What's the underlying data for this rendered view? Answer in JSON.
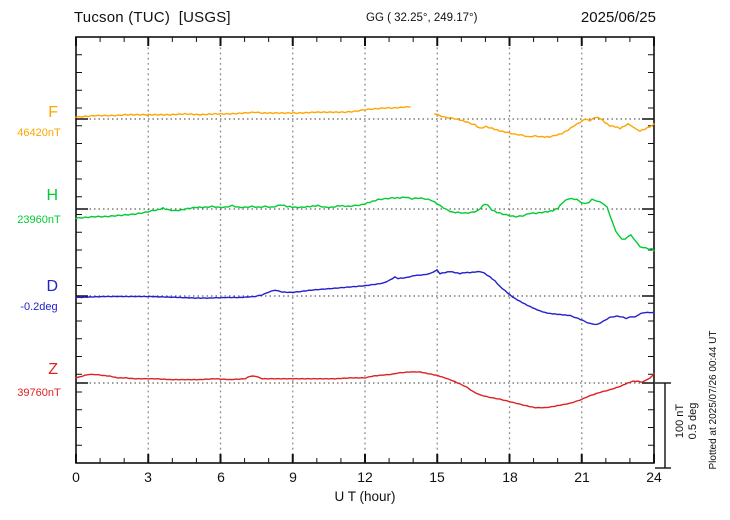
{
  "header": {
    "title": "Tucson (TUC)  [USGS]",
    "coordinates": "GG ( 32.25°, 249.17°)",
    "date": "2025/06/25"
  },
  "axis": {
    "x_label": "U T (hour)",
    "x_tick_labels": [
      "0",
      "3",
      "6",
      "9",
      "12",
      "15",
      "18",
      "21",
      "24"
    ]
  },
  "scale_bar": {
    "line1": "100 nT",
    "line2": "0.5 deg"
  },
  "footer": {
    "plotted_at": "Plotted at 2025/07/26 00:44 UT"
  },
  "chart_data": {
    "type": "line",
    "title": "Tucson (TUC) [USGS] magnetogram for 2025/06/25",
    "xlabel": "U T (hour)",
    "x_range_hours": [
      0,
      24
    ],
    "x_gridlines_hours": [
      3,
      6,
      9,
      12,
      15,
      18,
      21
    ],
    "grid": "vertical dotted hour lines, dotted horizontal baseline per channel",
    "scale": "100 nT per division (0.5 deg for D)",
    "legend_position": "left margin channel labels",
    "series": [
      {
        "id": "F",
        "label": "F",
        "baseline_label": "46420nT",
        "baseline_value": 46420,
        "unit": "nT",
        "color": "#FFA500",
        "segments": [
          {
            "hours": [
              0,
              0.37,
              0.79,
              1.2,
              1.62,
              2.03,
              2.66,
              3.28,
              3.9,
              4.53,
              5.15,
              5.77,
              6.39,
              7.02,
              7.43,
              7.72,
              8.06,
              8.68,
              9.3,
              9.92,
              10.55,
              11.17,
              11.58,
              12,
              12.41,
              12.83,
              13.24,
              13.58,
              13.87
            ],
            "values": [
              46422,
              46423,
              46424,
              46424,
              46424,
              46425,
              46425,
              46425,
              46425,
              46426,
              46425,
              46426,
              46426,
              46427,
              46428,
              46427,
              46427,
              46427,
              46427,
              46428,
              46428,
              46428,
              46429,
              46431,
              46432,
              46433,
              46433,
              46434,
              46434
            ]
          },
          {
            "hours": [
              14.9,
              15.32,
              15.61,
              15.94,
              16.27,
              16.57,
              16.77,
              17.02,
              17.27,
              17.6,
              17.94,
              18.23,
              18.52,
              18.77,
              19.06,
              19.35,
              19.68,
              19.93,
              20.18,
              20.43,
              20.68,
              20.93,
              21.13,
              21.34,
              21.55,
              21.76,
              21.96,
              22.17,
              22.38,
              22.59,
              22.79,
              22.92,
              23.08,
              23.25,
              23.42,
              23.62,
              23.83,
              24
            ],
            "values": [
              46426,
              46422,
              46421,
              46419,
              46416,
              46413,
              46409,
              46411,
              46409,
              46406,
              46404,
              46402,
              46401,
              46399,
              46400,
              46399,
              46399,
              46401,
              46403,
              46407,
              46412,
              46416,
              46420,
              46418,
              46422,
              46421,
              46416,
              46412,
              46411,
              46409,
              46412,
              46414,
              46412,
              46408,
              46406,
              46408,
              46411,
              46414
            ]
          }
        ]
      },
      {
        "id": "H",
        "label": "H",
        "baseline_label": "23960nT",
        "baseline_value": 23960,
        "unit": "nT",
        "color": "#00CC33",
        "segments": [
          {
            "hours": [
              0,
              0.37,
              0.79,
              1.2,
              1.62,
              2.03,
              2.45,
              2.87,
              3.16,
              3.4,
              3.61,
              3.82,
              4.11,
              4.4,
              4.73,
              5.02,
              5.36,
              5.65,
              5.9,
              6.19,
              6.48,
              6.73,
              7.02,
              7.31,
              7.56,
              7.85,
              8.14,
              8.39,
              8.55,
              8.76,
              9.09,
              9.38,
              9.72,
              10.05,
              10.34,
              10.63,
              10.96,
              11.29,
              11.58,
              11.88,
              12.21,
              12.54,
              12.83,
              13.12,
              13.45,
              13.66,
              13.95,
              14.2,
              14.49,
              14.78,
              15.11,
              15.4,
              15.65,
              15.86,
              16.15,
              16.44,
              16.69,
              16.9,
              16.98,
              17.11,
              17.27,
              17.48,
              17.73,
              18.02,
              18.27,
              18.56,
              18.85,
              19.1,
              19.35,
              19.6,
              19.8,
              20.01,
              20.22,
              20.43,
              20.59,
              20.8,
              20.97,
              21.13,
              21.3,
              21.42,
              21.59,
              21.76,
              21.92,
              22.05,
              22.17,
              22.3,
              22.42,
              22.55,
              22.67,
              22.79,
              22.92,
              23.04,
              23.17,
              23.29,
              23.42,
              23.54,
              23.66,
              23.79,
              23.91,
              24
            ],
            "values": [
              23949,
              23950,
              23951,
              23951,
              23952,
              23953,
              23954,
              23956,
              23958,
              23959,
              23961,
              23959,
              23958,
              23959,
              23961,
              23962,
              23962,
              23963,
              23962,
              23962,
              23964,
              23962,
              23962,
              23963,
              23962,
              23963,
              23962,
              23964,
              23965,
              23963,
              23962,
              23962,
              23963,
              23964,
              23962,
              23962,
              23964,
              23963,
              23964,
              23965,
              23968,
              23971,
              23972,
              23973,
              23973,
              23974,
              23972,
              23973,
              23972,
              23970,
              23964,
              23959,
              23956,
              23956,
              23955,
              23956,
              23958,
              23964,
              23966,
              23964,
              23959,
              23956,
              23954,
              23952,
              23951,
              23952,
              23955,
              23955,
              23956,
              23957,
              23958,
              23961,
              23968,
              23972,
              23972,
              23971,
              23968,
              23966,
              23968,
              23971,
              23970,
              23968,
              23966,
              23962,
              23953,
              23942,
              23934,
              23928,
              23925,
              23924,
              23928,
              23929,
              23925,
              23920,
              23916,
              23914,
              23915,
              23912,
              23914,
              23911
            ]
          }
        ]
      },
      {
        "id": "D",
        "label": "D",
        "baseline_label": "-0.2deg",
        "baseline_value": -0.2,
        "unit": "deg",
        "color": "#2222CC",
        "segments": [
          {
            "hours": [
              0,
              0.58,
              1.2,
              1.83,
              2.45,
              3.07,
              3.7,
              4.32,
              4.94,
              5.56,
              6.19,
              6.81,
              7.43,
              7.72,
              7.97,
              8.26,
              8.55,
              8.89,
              9.3,
              9.8,
              10.34,
              10.88,
              11.38,
              11.88,
              12.41,
              12.75,
              13.04,
              13.24,
              13.37,
              13.58,
              13.74,
              14.08,
              14.41,
              14.7,
              14.99,
              15.11,
              15.32,
              15.53,
              15.74,
              15.94,
              16.15,
              16.36,
              16.57,
              16.77,
              16.94,
              17.19,
              17.4,
              17.6,
              17.81,
              18.02,
              18.23,
              18.44,
              18.64,
              18.85,
              19.06,
              19.27,
              19.47,
              19.68,
              19.89,
              20.1,
              20.3,
              20.51,
              20.68,
              20.84,
              21.05,
              21.22,
              21.34,
              21.51,
              21.63,
              21.76,
              21.88,
              22.05,
              22.17,
              22.34,
              22.46,
              22.59,
              22.71,
              22.84,
              22.96,
              23.08,
              23.21,
              23.33,
              23.46,
              23.62,
              23.83,
              24
            ],
            "values": [
              -0.209,
              -0.206,
              -0.203,
              -0.203,
              -0.203,
              -0.203,
              -0.206,
              -0.209,
              -0.212,
              -0.212,
              -0.209,
              -0.209,
              -0.203,
              -0.194,
              -0.179,
              -0.165,
              -0.176,
              -0.179,
              -0.174,
              -0.165,
              -0.159,
              -0.153,
              -0.147,
              -0.141,
              -0.132,
              -0.124,
              -0.106,
              -0.088,
              -0.097,
              -0.094,
              -0.091,
              -0.079,
              -0.076,
              -0.068,
              -0.047,
              -0.068,
              -0.062,
              -0.056,
              -0.062,
              -0.068,
              -0.062,
              -0.062,
              -0.059,
              -0.056,
              -0.065,
              -0.088,
              -0.112,
              -0.144,
              -0.168,
              -0.194,
              -0.215,
              -0.232,
              -0.247,
              -0.262,
              -0.276,
              -0.288,
              -0.297,
              -0.303,
              -0.306,
              -0.309,
              -0.312,
              -0.315,
              -0.324,
              -0.332,
              -0.344,
              -0.356,
              -0.362,
              -0.365,
              -0.368,
              -0.359,
              -0.35,
              -0.335,
              -0.326,
              -0.321,
              -0.318,
              -0.321,
              -0.324,
              -0.332,
              -0.326,
              -0.321,
              -0.324,
              -0.312,
              -0.303,
              -0.297,
              -0.297,
              -0.297
            ]
          }
        ]
      },
      {
        "id": "Z",
        "label": "Z",
        "baseline_label": "39760nT",
        "baseline_value": 39760,
        "unit": "nT",
        "color": "#DD2222",
        "segments": [
          {
            "hours": [
              0,
              0.25,
              0.5,
              0.79,
              1.08,
              1.41,
              1.74,
              2.08,
              2.45,
              2.87,
              3.28,
              3.9,
              4.53,
              5.15,
              5.77,
              6.39,
              7.02,
              7.22,
              7.47,
              7.72,
              8.26,
              8.89,
              9.51,
              10.13,
              10.75,
              11.38,
              12,
              12.29,
              12.62,
              13.04,
              13.45,
              13.87,
              14.28,
              14.62,
              14.99,
              15.32,
              15.61,
              15.94,
              16.23,
              16.48,
              16.77,
              17.19,
              17.6,
              18.02,
              18.44,
              18.73,
              19.06,
              19.47,
              19.76,
              20.1,
              20.51,
              20.93,
              21.34,
              21.76,
              22.17,
              22.59,
              22.92,
              23.12,
              23.33,
              23.5,
              23.66,
              23.83,
              23.95,
              24
            ],
            "values": [
              39766,
              39768,
              39770,
              39770,
              39769,
              39768,
              39766,
              39766,
              39765,
              39765,
              39765,
              39764,
              39764,
              39764,
              39765,
              39764,
              39765,
              39768,
              39768,
              39765,
              39765,
              39765,
              39765,
              39765,
              39765,
              39766,
              39766,
              39768,
              39769,
              39770,
              39772,
              39773,
              39773,
              39771,
              39769,
              39766,
              39763,
              39759,
              39755,
              39750,
              39746,
              39743,
              39741,
              39738,
              39735,
              39733,
              39731,
              39731,
              39732,
              39734,
              39736,
              39740,
              39745,
              39749,
              39752,
              39756,
              39760,
              39762,
              39762,
              39761,
              39763,
              39766,
              39769,
              39771
            ]
          }
        ]
      }
    ]
  }
}
